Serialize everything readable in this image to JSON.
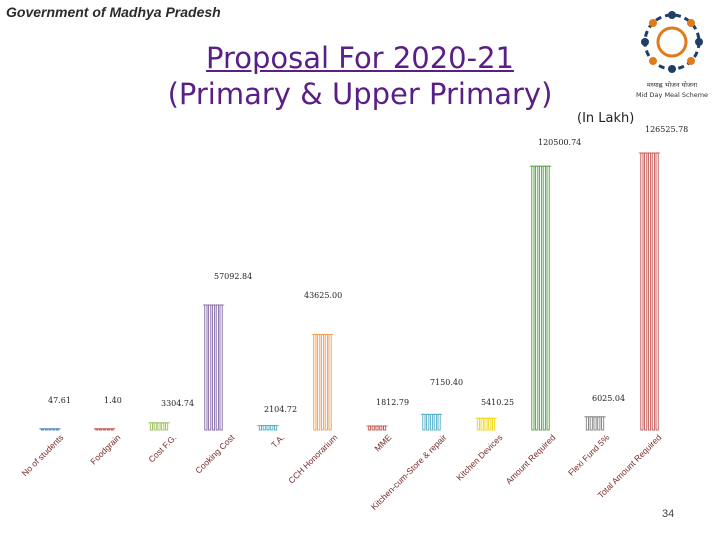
{
  "header": {
    "text": "Government of Madhya Pradesh"
  },
  "title": {
    "line1": "Proposal For  2020-21",
    "line2": "(Primary & Upper Primary)"
  },
  "unit_label": "(In Lakh)",
  "logo": {
    "line1": "मध्याह्न भोजन योजना",
    "line2": "Mid Day Meal Scheme"
  },
  "page_number": "34",
  "colors": {
    "title": "#5a1f86",
    "bars": [
      "#4f81bd",
      "#c0504d",
      "#9bbb59",
      "#8064a2",
      "#4bacc6",
      "#f79646",
      "#c0504d",
      "#4bacc6",
      "#f2d600",
      "#4f9f3f",
      "#7f7f7f",
      "#c0504d",
      "#1f4e79"
    ]
  },
  "chart_data": {
    "type": "bar",
    "categories": [
      "No of students",
      "Foodgrain",
      "Cost F.G.",
      "Cooking Cost",
      "T.A.",
      "CCH Honorarium",
      "MME",
      "Kitchen-cum-Store & repair",
      "Kitchen Devices",
      "Amount Required",
      "Flexi Fund 5%",
      "Total Amount Required"
    ],
    "values": [
      47.61,
      1.4,
      3304.74,
      57092.84,
      2104.72,
      43625.0,
      1812.79,
      7150.4,
      5410.25,
      120500.74,
      6025.04,
      126525.78
    ],
    "value_labels": [
      "47.61",
      "1.40",
      "3304.74",
      "57092.84",
      "2104.72",
      "43625.00",
      "1812.79",
      "7150.40",
      "5410.25",
      "120500.74",
      "6025.04",
      "126525.78"
    ],
    "ylim": [
      0,
      126525.78
    ],
    "grid": false,
    "legend": "none"
  }
}
